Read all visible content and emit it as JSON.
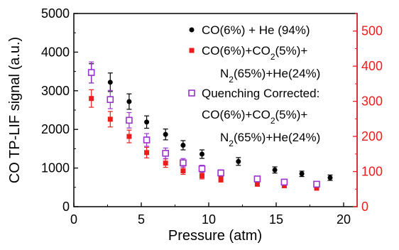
{
  "chart_data": {
    "type": "scatter",
    "xlabel": "Pressure (atm)",
    "ylabel": "CO TP-LIF signal (a.u.)",
    "xlim": [
      0,
      21
    ],
    "ylim": [
      0,
      5000
    ],
    "y2lim": [
      0,
      550
    ],
    "x_ticks": [
      "0",
      "5",
      "10",
      "15",
      "20"
    ],
    "y_ticks": [
      "0",
      "1000",
      "2000",
      "3000",
      "4000",
      "5000"
    ],
    "y2_ticks": [
      "0",
      "100",
      "200",
      "300",
      "400",
      "500"
    ],
    "grid": false,
    "legend_position": "top-right",
    "colors": {
      "he": "#000000",
      "mix": "#ee1c1c",
      "corrected": "#9933cc",
      "right_axis": "#ee1c1c"
    },
    "series": [
      {
        "name": "CO(6%) + He (94%)",
        "marker": "circle",
        "axis": "left",
        "x": [
          1.3,
          2.7,
          4.1,
          5.4,
          6.8,
          8.1,
          9.5,
          10.9,
          12.2,
          14.9,
          16.9,
          19.0
        ],
        "y": [
          3450,
          3220,
          2720,
          2190,
          1870,
          1590,
          1360,
          870,
          1170,
          950,
          850,
          750
        ],
        "err": [
          250,
          240,
          200,
          160,
          140,
          120,
          110,
          80,
          100,
          80,
          70,
          70
        ]
      },
      {
        "name": "CO(6%)+CO2(5%)+ N2(65%)+He(24%)",
        "marker": "square",
        "axis": "right",
        "x": [
          1.3,
          2.7,
          4.1,
          5.4,
          6.8,
          8.1,
          9.5,
          10.9,
          13.6,
          15.6,
          18.0
        ],
        "y": [
          308,
          249,
          200,
          154,
          124,
          102,
          88,
          78,
          65,
          60,
          53
        ],
        "err": [
          25,
          22,
          18,
          15,
          12,
          10,
          9,
          8,
          7,
          6,
          6
        ]
      },
      {
        "name": "Quenching Corrected: CO(6%)+CO2(5%)+ N2(65%)+He(24%)",
        "marker": "open-square",
        "axis": "right",
        "x": [
          1.3,
          2.7,
          4.1,
          5.4,
          6.8,
          8.1,
          9.5,
          10.9,
          13.6,
          15.6,
          18.0
        ],
        "y": [
          382,
          305,
          246,
          190,
          152,
          125,
          108,
          96,
          79,
          70,
          64
        ],
        "err": [
          30,
          26,
          22,
          18,
          15,
          12,
          10,
          9,
          8,
          7,
          6
        ]
      }
    ]
  },
  "legend": [
    {
      "lines": [
        "CO(6%) + He (94%)"
      ]
    },
    {
      "lines": [
        "CO(6%)+CO2(5%)+",
        "N2(65%)+He(24%)"
      ]
    },
    {
      "lines": [
        "Quenching Corrected:",
        "CO(6%)+CO2(5%)+",
        "N2(65%)+He(24%)"
      ]
    }
  ]
}
